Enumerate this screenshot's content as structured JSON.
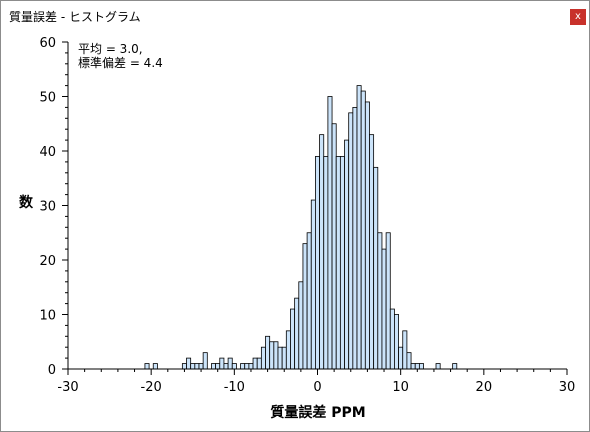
{
  "window": {
    "title": "質量誤差 - ヒストグラム",
    "close_label": "x"
  },
  "stats": {
    "mean": "平均 = 3.0,",
    "stddev": "標準偏差  = 4.4"
  },
  "chart_data": {
    "type": "bar",
    "xlabel": "質量誤差 PPM",
    "ylabel": "数",
    "xlim": [
      -30,
      30
    ],
    "ylim": [
      0,
      60
    ],
    "bar_width": 0.5,
    "bar_color": "#cce4fa",
    "bar_edge_color": "#000000",
    "x_ticks": [
      -30,
      -20,
      -10,
      0,
      10,
      20,
      30
    ],
    "y_ticks": [
      0,
      10,
      20,
      30,
      40,
      50,
      60
    ],
    "bins": [
      {
        "x": -20.5,
        "y": 1
      },
      {
        "x": -19.5,
        "y": 1
      },
      {
        "x": -16,
        "y": 1
      },
      {
        "x": -15.5,
        "y": 2
      },
      {
        "x": -15,
        "y": 1
      },
      {
        "x": -14.5,
        "y": 1
      },
      {
        "x": -14,
        "y": 1
      },
      {
        "x": -13.5,
        "y": 3
      },
      {
        "x": -13,
        "y": 0
      },
      {
        "x": -12.5,
        "y": 1
      },
      {
        "x": -12,
        "y": 1
      },
      {
        "x": -11.5,
        "y": 2
      },
      {
        "x": -11,
        "y": 1
      },
      {
        "x": -10.5,
        "y": 2
      },
      {
        "x": -10,
        "y": 1
      },
      {
        "x": -9.5,
        "y": 0
      },
      {
        "x": -9,
        "y": 1
      },
      {
        "x": -8.5,
        "y": 1
      },
      {
        "x": -8,
        "y": 1
      },
      {
        "x": -7.5,
        "y": 2
      },
      {
        "x": -7,
        "y": 2
      },
      {
        "x": -6.5,
        "y": 4
      },
      {
        "x": -6,
        "y": 6
      },
      {
        "x": -5.5,
        "y": 5
      },
      {
        "x": -5,
        "y": 5
      },
      {
        "x": -4.5,
        "y": 4
      },
      {
        "x": -4,
        "y": 4
      },
      {
        "x": -3.5,
        "y": 7
      },
      {
        "x": -3,
        "y": 11
      },
      {
        "x": -2.5,
        "y": 13
      },
      {
        "x": -2,
        "y": 16
      },
      {
        "x": -1.5,
        "y": 23
      },
      {
        "x": -1,
        "y": 25
      },
      {
        "x": -0.5,
        "y": 31
      },
      {
        "x": 0,
        "y": 39
      },
      {
        "x": 0.5,
        "y": 43
      },
      {
        "x": 1,
        "y": 39
      },
      {
        "x": 1.5,
        "y": 50
      },
      {
        "x": 2,
        "y": 45
      },
      {
        "x": 2.5,
        "y": 39
      },
      {
        "x": 3,
        "y": 39
      },
      {
        "x": 3.5,
        "y": 42
      },
      {
        "x": 4,
        "y": 47
      },
      {
        "x": 4.5,
        "y": 48
      },
      {
        "x": 5,
        "y": 52
      },
      {
        "x": 5.5,
        "y": 51
      },
      {
        "x": 6,
        "y": 49
      },
      {
        "x": 6.5,
        "y": 43
      },
      {
        "x": 7,
        "y": 37
      },
      {
        "x": 7.5,
        "y": 25
      },
      {
        "x": 8,
        "y": 22
      },
      {
        "x": 8.5,
        "y": 25
      },
      {
        "x": 9,
        "y": 11
      },
      {
        "x": 9.5,
        "y": 10
      },
      {
        "x": 10,
        "y": 4
      },
      {
        "x": 10.5,
        "y": 7
      },
      {
        "x": 11,
        "y": 3
      },
      {
        "x": 11.5,
        "y": 1
      },
      {
        "x": 12,
        "y": 1
      },
      {
        "x": 12.5,
        "y": 1
      },
      {
        "x": 14.5,
        "y": 1
      },
      {
        "x": 16.5,
        "y": 1
      }
    ]
  }
}
